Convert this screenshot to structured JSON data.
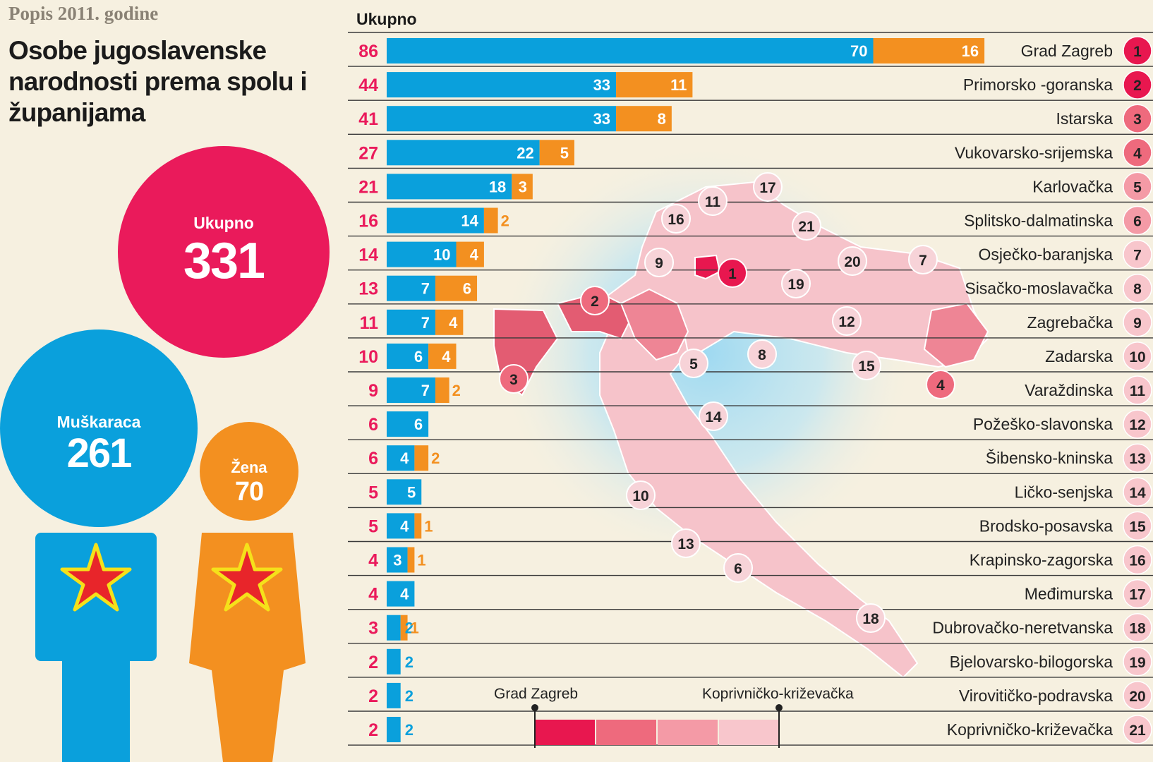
{
  "kicker": "Popis 2011. godine",
  "headline": "Osobe jugoslavenske narodnosti prema spolu i županijama",
  "totals": {
    "total_label": "Ukupno",
    "total_value": "331",
    "men_label": "Muškaraca",
    "men_value": "261",
    "women_label": "Žena",
    "women_value": "70"
  },
  "colors": {
    "men": "#0aa0dc",
    "women": "#f39020",
    "total": "#ea1a5b",
    "map_scale": [
      "#e8174f",
      "#ee6a7d",
      "#f49aa6",
      "#f8c6cc"
    ],
    "star": "#e8252a",
    "star_outline": "#f5e11a"
  },
  "chart_data": {
    "type": "bar",
    "stacked": true,
    "orientation": "horizontal",
    "column_header": "Ukupno",
    "series": [
      {
        "name": "Muškaraca",
        "values": [
          70,
          33,
          33,
          22,
          18,
          14,
          10,
          7,
          7,
          6,
          7,
          6,
          4,
          5,
          4,
          3,
          4,
          2,
          2,
          2,
          2
        ]
      },
      {
        "name": "Žena",
        "values": [
          16,
          11,
          8,
          5,
          3,
          2,
          4,
          6,
          4,
          4,
          2,
          0,
          2,
          0,
          1,
          1,
          0,
          1,
          0,
          0,
          0
        ]
      }
    ],
    "totals": [
      86,
      44,
      41,
      27,
      21,
      16,
      14,
      13,
      11,
      10,
      9,
      6,
      6,
      5,
      5,
      4,
      4,
      3,
      2,
      2,
      2
    ],
    "categories": [
      "Grad Zagreb",
      "Primorsko -goranska",
      "Istarska",
      "Vukovarsko-srijemska",
      "Karlovačka",
      "Splitsko-dalmatinska",
      "Osječko-baranjska",
      "Sisačko-moslavačka",
      "Zagrebačka",
      "Zadarska",
      "Varaždinska",
      "Požeško-slavonska",
      "Šibensko-kninska",
      "Ličko-senjska",
      "Brodsko-posavska",
      "Krapinsko-zagorska",
      "Međimurska",
      "Dubrovačko-neretvanska",
      "Bjelovarsko-bilogorska",
      "Virovitičko-podravska",
      "Koprivničko-križevačka"
    ],
    "ranks": [
      1,
      2,
      3,
      4,
      5,
      6,
      7,
      8,
      9,
      10,
      11,
      12,
      13,
      14,
      15,
      16,
      17,
      18,
      19,
      20,
      21
    ],
    "legend_scale": {
      "low": "Koprivničko-križevačka",
      "high": "Grad Zagreb"
    }
  }
}
